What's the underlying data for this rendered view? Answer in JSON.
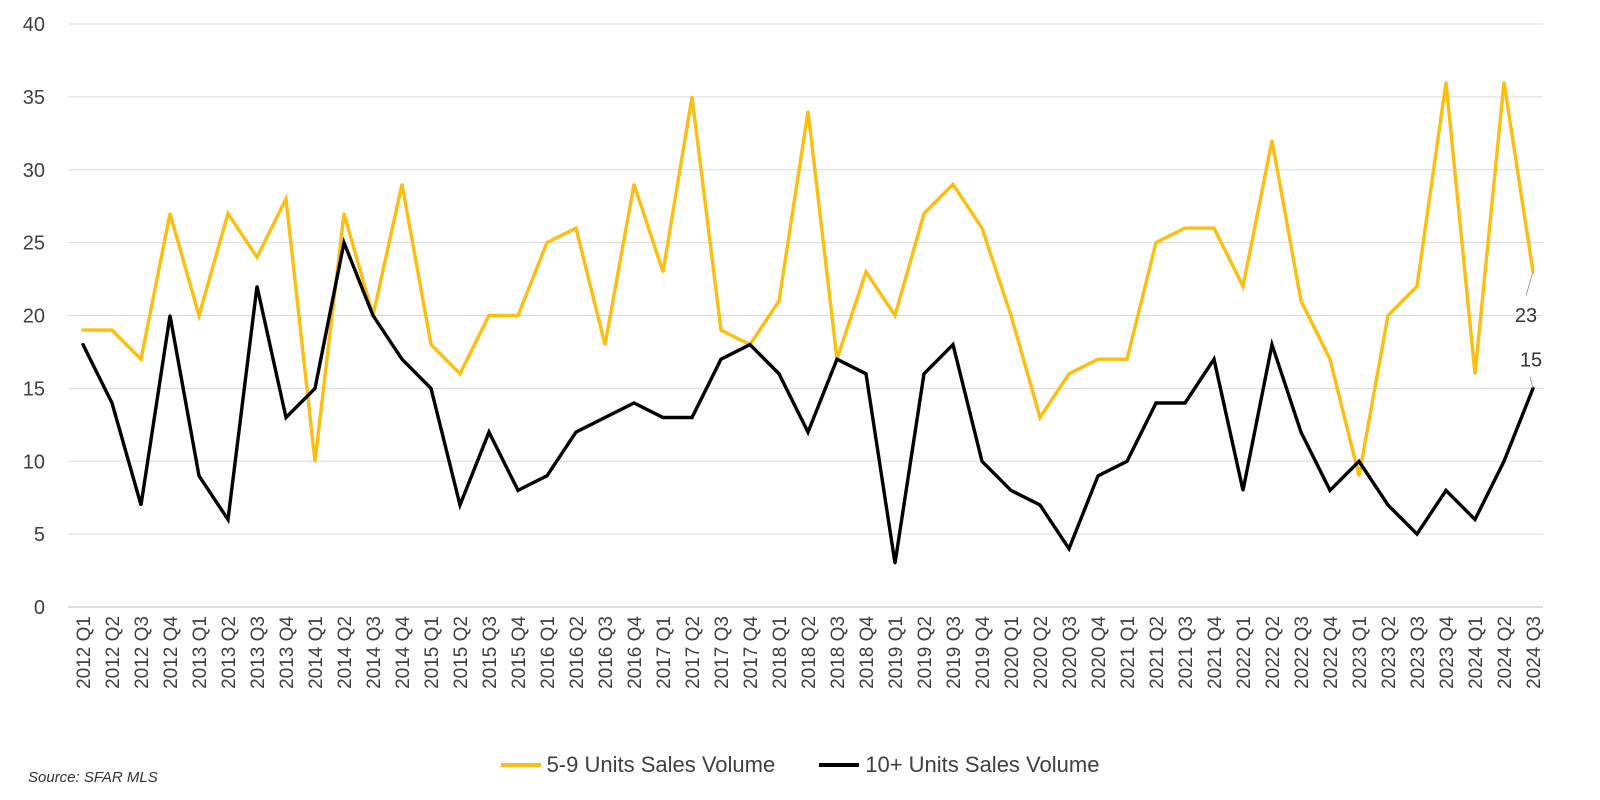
{
  "source": "Source: SFAR MLS",
  "colors": {
    "series_59": "#FDBE12",
    "series_10": "#000000",
    "grid": "#D9D9D9"
  },
  "chart_data": {
    "type": "line",
    "title": "",
    "xlabel": "",
    "ylabel": "",
    "ylim": [
      0,
      40
    ],
    "yticks": [
      0,
      5,
      10,
      15,
      20,
      25,
      30,
      35,
      40
    ],
    "grid": "horizontal",
    "legend_position": "bottom",
    "categories": [
      "2012 Q1",
      "2012 Q2",
      "2012 Q3",
      "2012 Q4",
      "2013 Q1",
      "2013 Q2",
      "2013 Q3",
      "2013 Q4",
      "2014 Q1",
      "2014 Q2",
      "2014 Q3",
      "2014 Q4",
      "2015 Q1",
      "2015 Q2",
      "2015 Q3",
      "2015 Q4",
      "2016 Q1",
      "2016 Q2",
      "2016 Q3",
      "2016 Q4",
      "2017 Q1",
      "2017 Q2",
      "2017 Q3",
      "2017 Q4",
      "2018 Q1",
      "2018 Q2",
      "2018 Q3",
      "2018 Q4",
      "2019 Q1",
      "2019 Q2",
      "2019 Q3",
      "2019 Q4",
      "2020 Q1",
      "2020 Q2",
      "2020 Q3",
      "2020 Q4",
      "2021 Q1",
      "2021 Q2",
      "2021 Q3",
      "2021 Q4",
      "2022 Q1",
      "2022 Q2",
      "2022 Q3",
      "2022 Q4",
      "2023 Q1",
      "2023 Q2",
      "2023 Q3",
      "2023 Q4",
      "2024 Q1",
      "2024 Q2",
      "2024 Q3"
    ],
    "series": [
      {
        "name": "5-9 Units Sales Volume",
        "color": "#FDBE12",
        "values": [
          19,
          19,
          17,
          27,
          20,
          27,
          24,
          28,
          10,
          27,
          20,
          29,
          18,
          16,
          20,
          20,
          25,
          26,
          18,
          29,
          23,
          35,
          19,
          18,
          21,
          34,
          17,
          23,
          20,
          27,
          29,
          26,
          20,
          13,
          16,
          17,
          17,
          25,
          26,
          26,
          22,
          32,
          21,
          17,
          9,
          20,
          22,
          36,
          16,
          36,
          23
        ],
        "end_label": "23"
      },
      {
        "name": "10+ Units Sales Volume",
        "color": "#000000",
        "values": [
          18,
          14,
          7,
          20,
          9,
          6,
          22,
          13,
          15,
          25,
          20,
          17,
          15,
          7,
          12,
          8,
          9,
          12,
          13,
          14,
          13,
          13,
          17,
          18,
          16,
          12,
          17,
          16,
          3,
          16,
          18,
          10,
          8,
          7,
          4,
          9,
          10,
          14,
          14,
          17,
          8,
          18,
          12,
          8,
          10,
          7,
          5,
          8,
          6,
          10,
          15
        ],
        "end_label": "15"
      }
    ]
  }
}
